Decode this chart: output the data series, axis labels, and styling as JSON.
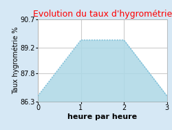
{
  "title": "Evolution du taux d'hygrométrie",
  "title_color": "#ff0000",
  "xlabel": "heure par heure",
  "ylabel": "Taux hygrométrie %",
  "x_data": [
    0,
    1,
    2,
    3
  ],
  "y_data": [
    86.6,
    89.6,
    89.6,
    86.6
  ],
  "fill_color": "#add8e6",
  "fill_alpha": 0.85,
  "line_color": "#6ab4d4",
  "line_width": 1.0,
  "ylim": [
    86.3,
    90.7
  ],
  "xlim": [
    0,
    3
  ],
  "yticks": [
    86.3,
    87.8,
    89.2,
    90.7
  ],
  "xticks": [
    0,
    1,
    2,
    3
  ],
  "background_color": "#d6e8f5",
  "plot_bg_color": "#ffffff",
  "grid_color": "#cccccc",
  "title_fontsize": 9,
  "xlabel_fontsize": 8,
  "ylabel_fontsize": 7,
  "tick_fontsize": 7
}
